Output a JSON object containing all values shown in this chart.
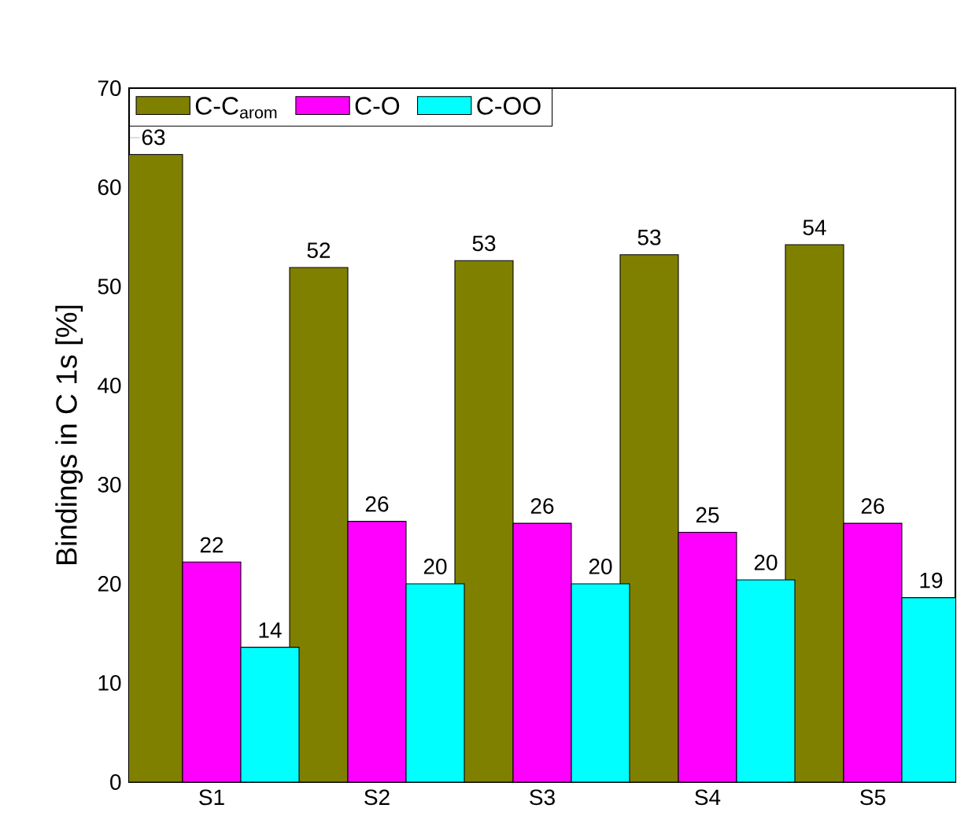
{
  "chart_data": {
    "type": "bar",
    "ylabel": "Bindings in C 1s [%]",
    "categories": [
      "S1",
      "S2",
      "S3",
      "S4",
      "S5"
    ],
    "series": [
      {
        "name": "C-C$_{arom}$",
        "color": "#808000",
        "values": [
          63.3,
          51.9,
          52.6,
          53.2,
          54.2
        ],
        "value_labels": [
          "63",
          "52",
          "53",
          "53",
          "54"
        ]
      },
      {
        "name": "C-O",
        "color": "#ff00ff",
        "values": [
          22.2,
          26.3,
          26.1,
          25.2,
          26.1
        ],
        "value_labels": [
          "22",
          "26",
          "26",
          "25",
          "26"
        ]
      },
      {
        "name": "C-OO",
        "color": "#00ffff",
        "values": [
          13.6,
          20.0,
          20.0,
          20.4,
          18.6
        ],
        "value_labels": [
          "14",
          "20",
          "20",
          "20",
          "19"
        ]
      }
    ],
    "ylim": [
      0,
      70
    ],
    "yticks": [
      0,
      10,
      20,
      30,
      40,
      50,
      60,
      70
    ],
    "legend": "top left",
    "grid": false
  }
}
